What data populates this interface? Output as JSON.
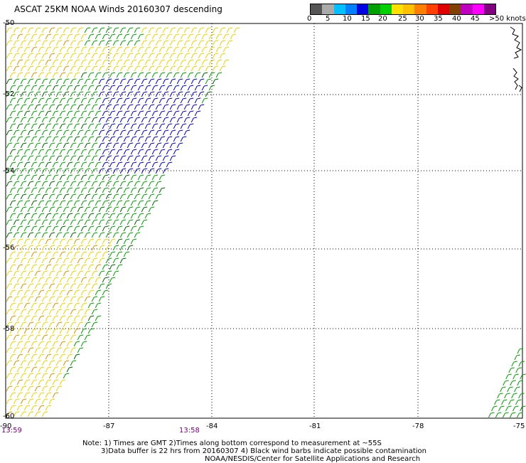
{
  "title": "ASCAT 25KM NOAA Winds 20160307 descending",
  "legend": {
    "colors": [
      "#555555",
      "#aaaaaa",
      "#00c0ff",
      "#0080ff",
      "#0000e0",
      "#00a000",
      "#00d000",
      "#ffe000",
      "#ffc000",
      "#ff8000",
      "#ff4000",
      "#e00000",
      "#804000",
      "#c000c0",
      "#ff00ff",
      "#800080"
    ],
    "labels": [
      "0",
      "5",
      "10",
      "15",
      "20",
      "25",
      "30",
      "35",
      "40",
      "45",
      ">50 knots"
    ]
  },
  "lat_labels": [
    "-50",
    "-52",
    "-54",
    "-56",
    "-58",
    "-60"
  ],
  "lon_labels": [
    "-90",
    "-87",
    "-84",
    "-81",
    "-78",
    "-75"
  ],
  "times": [
    "13:59",
    "13:58"
  ],
  "notes": {
    "line1": "Note: 1) Times are GMT 2)Times along bottom correspond to measurement at ~55S",
    "line2": "3)Data buffer is 22 hrs from 20160307 4) Black wind barbs indicate possible contamination",
    "line3": "NOAA/NESDIS/Center for Satellite Applications and Research"
  },
  "wind_colors": {
    "yellow": "#f0d000",
    "orange": "#e09000",
    "green": "#00a000",
    "darkgreen": "#006000",
    "blue": "#0000d0"
  }
}
